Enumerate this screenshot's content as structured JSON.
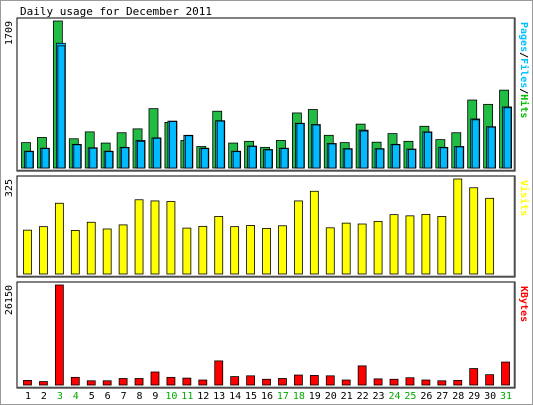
{
  "chart_data": [
    {
      "type": "bar",
      "title": "Daily usage for December 2011",
      "ylabel_max": "1709",
      "ymax": 1709,
      "legend": [
        {
          "text": "Pages",
          "color": "#00c0ff"
        },
        {
          "text": "/",
          "color": "#000000"
        },
        {
          "text": "Files",
          "color": "#00c0ff"
        },
        {
          "text": "/",
          "color": "#000000"
        },
        {
          "text": "Hits",
          "color": "#00c000"
        }
      ],
      "series": [
        {
          "name": "Hits",
          "color": "#22bb44",
          "values": [
            295,
            355,
            1709,
            340,
            420,
            290,
            410,
            455,
            690,
            530,
            320,
            250,
            660,
            290,
            310,
            240,
            320,
            640,
            680,
            380,
            295,
            510,
            300,
            400,
            310,
            485,
            330,
            410,
            790,
            740,
            905
          ]
        },
        {
          "name": "Files",
          "color": "#00bbff",
          "values": [
            195,
            230,
            1450,
            275,
            235,
            195,
            240,
            320,
            350,
            545,
            380,
            230,
            550,
            195,
            255,
            215,
            230,
            520,
            505,
            285,
            225,
            440,
            225,
            275,
            220,
            420,
            240,
            250,
            570,
            480,
            710
          ]
        },
        {
          "name": "Pages",
          "color": "#00bbff",
          "values": [
            190,
            225,
            1420,
            270,
            230,
            190,
            235,
            310,
            345,
            540,
            375,
            225,
            545,
            190,
            250,
            210,
            225,
            515,
            500,
            280,
            220,
            430,
            220,
            270,
            215,
            415,
            235,
            245,
            560,
            475,
            700
          ]
        }
      ]
    },
    {
      "type": "bar",
      "ylabel_max": "325",
      "ymax": 325,
      "legend": [
        {
          "text": "Visits",
          "color": "#ffff00"
        }
      ],
      "series": [
        {
          "name": "Visits",
          "color": "#ffff00",
          "values": [
            150,
            162,
            242,
            149,
            177,
            154,
            168,
            254,
            250,
            248,
            157,
            163,
            197,
            162,
            166,
            156,
            165,
            250,
            283,
            158,
            174,
            171,
            180,
            203,
            199,
            204,
            197,
            325,
            295,
            259,
            0
          ]
        }
      ]
    },
    {
      "type": "bar",
      "ylabel_max": "26150",
      "ymax": 26150,
      "legend": [
        {
          "text": "KBytes",
          "color": "#ff0000"
        }
      ],
      "series": [
        {
          "name": "KBytes",
          "color": "#ff0000",
          "values": [
            1200,
            900,
            26150,
            2000,
            1100,
            1100,
            1700,
            1700,
            3400,
            2000,
            1800,
            1300,
            6300,
            2200,
            2400,
            1500,
            1700,
            2600,
            2500,
            2400,
            1300,
            5000,
            1600,
            1500,
            1900,
            1300,
            1100,
            1200,
            4300,
            2700,
            6000
          ]
        }
      ]
    }
  ],
  "days": [
    "1",
    "2",
    "3",
    "4",
    "5",
    "6",
    "7",
    "8",
    "9",
    "10",
    "11",
    "12",
    "13",
    "14",
    "15",
    "16",
    "17",
    "18",
    "19",
    "20",
    "21",
    "22",
    "23",
    "24",
    "25",
    "26",
    "27",
    "28",
    "29",
    "30",
    "31"
  ],
  "weekend_days": [
    "3",
    "4",
    "10",
    "11",
    "17",
    "18",
    "24",
    "25",
    "31"
  ],
  "colors": {
    "weekday": "#000000",
    "weekend": "#00aa00",
    "border": "#000000"
  }
}
